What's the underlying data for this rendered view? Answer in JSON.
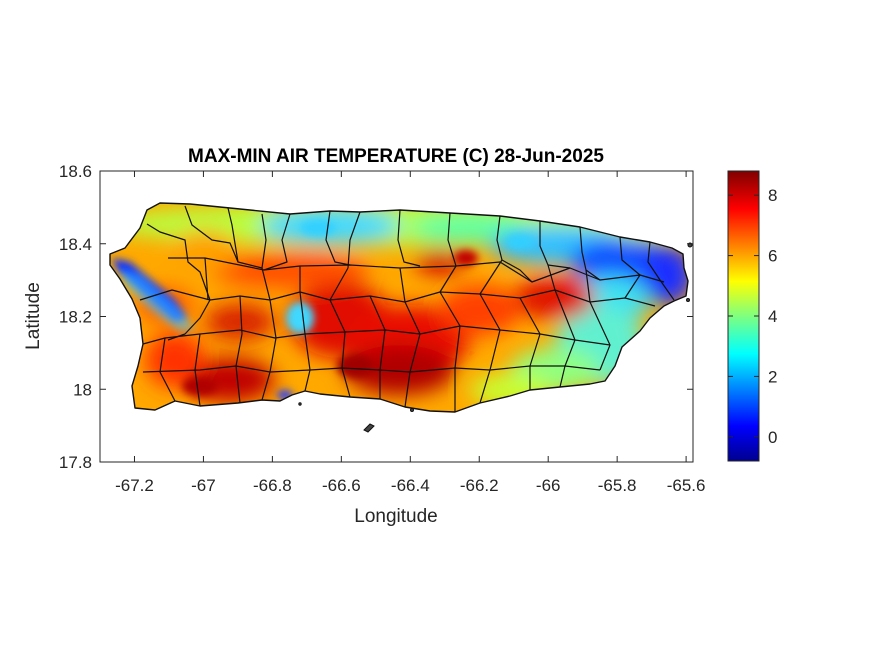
{
  "chart_data": {
    "type": "heatmap",
    "title": "MAX-MIN AIR TEMPERATURE (C) 28-Jun-2025",
    "xlabel": "Longitude",
    "ylabel": "Latitude",
    "xlim": [
      -67.3,
      -65.58
    ],
    "ylim": [
      17.8,
      18.6
    ],
    "xticks": [
      -67.2,
      -67,
      -66.8,
      -66.6,
      -66.4,
      -66.2,
      -66,
      -65.8,
      -65.6
    ],
    "xtick_labels": [
      "-67.2",
      "-67",
      "-66.8",
      "-66.6",
      "-66.4",
      "-66.2",
      "-66",
      "-65.8",
      "-65.6"
    ],
    "yticks": [
      17.8,
      18,
      18.2,
      18.4,
      18.6
    ],
    "ytick_labels": [
      "17.8",
      "18",
      "18.2",
      "18.4",
      "18.6"
    ],
    "colorbar": {
      "colormap": "jet",
      "clim": [
        -0.8,
        8.8
      ],
      "ticks": [
        0,
        2,
        4,
        6,
        8
      ],
      "tick_labels": [
        "0",
        "2",
        "4",
        "6",
        "8"
      ]
    },
    "field_hotspots": [
      {
        "lon": -67.18,
        "lat": 18.27,
        "value": 1.2
      },
      {
        "lon": -67.1,
        "lat": 18.22,
        "value": 2.5
      },
      {
        "lon": -66.68,
        "lat": 18.2,
        "value": 8.0
      },
      {
        "lon": -66.5,
        "lat": 18.08,
        "value": 8.3
      },
      {
        "lon": -66.38,
        "lat": 18.05,
        "value": 8.0
      },
      {
        "lon": -66.98,
        "lat": 18.02,
        "value": 8.3
      },
      {
        "lon": -67.15,
        "lat": 18.08,
        "value": 7.2
      },
      {
        "lon": -66.3,
        "lat": 18.22,
        "value": 7.5
      },
      {
        "lon": -66.0,
        "lat": 18.25,
        "value": 7.8
      },
      {
        "lon": -66.62,
        "lat": 18.25,
        "value": 7.6
      },
      {
        "lon": -66.4,
        "lat": 18.36,
        "value": 7.0
      },
      {
        "lon": -66.9,
        "lat": 18.35,
        "value": 6.2
      },
      {
        "lon": -66.8,
        "lat": 18.43,
        "value": 4.0
      },
      {
        "lon": -66.55,
        "lat": 18.44,
        "value": 3.6
      },
      {
        "lon": -66.15,
        "lat": 18.43,
        "value": 4.6
      },
      {
        "lon": -65.9,
        "lat": 18.4,
        "value": 3.0
      },
      {
        "lon": -65.72,
        "lat": 18.35,
        "value": 1.0
      },
      {
        "lon": -65.66,
        "lat": 18.28,
        "value": 2.2
      },
      {
        "lon": -65.78,
        "lat": 18.1,
        "value": 4.2
      },
      {
        "lon": -66.0,
        "lat": 18.05,
        "value": 4.6
      },
      {
        "lon": -66.2,
        "lat": 18.05,
        "value": 5.2
      },
      {
        "lon": -66.8,
        "lat": 17.99,
        "value": 1.5
      },
      {
        "lon": -66.8,
        "lat": 18.2,
        "value": 4.2
      }
    ]
  }
}
